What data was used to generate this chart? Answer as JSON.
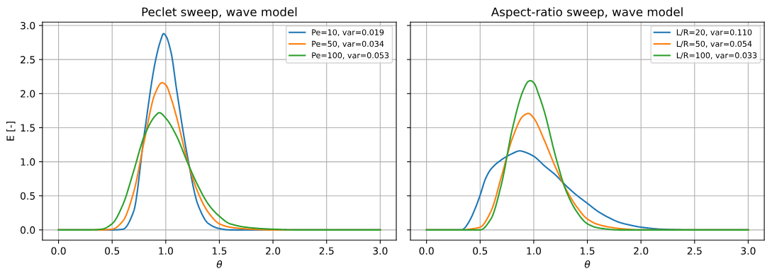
{
  "chart_data": [
    {
      "type": "line",
      "title": "Peclet sweep, wave model",
      "xlabel": "θ",
      "ylabel": "E [-]",
      "grid": true,
      "legend": "top right",
      "xlim": [
        -0.15,
        3.15
      ],
      "ylim": [
        -0.15,
        3.05
      ],
      "xticks": [
        {
          "value": 0,
          "label": "0.0"
        },
        {
          "value": 0.5,
          "label": "0.5"
        },
        {
          "value": 1,
          "label": "1.0"
        },
        {
          "value": 1.5,
          "label": "1.5"
        },
        {
          "value": 2,
          "label": "2.0"
        },
        {
          "value": 2.5,
          "label": "2.5"
        },
        {
          "value": 3,
          "label": "3.0"
        }
      ],
      "yticks": [
        {
          "value": 0,
          "label": "0.0"
        },
        {
          "value": 0.5,
          "label": "0.5"
        },
        {
          "value": 1,
          "label": "1.0"
        },
        {
          "value": 1.5,
          "label": "1.5"
        },
        {
          "value": 2,
          "label": "2.0"
        },
        {
          "value": 2.5,
          "label": "2.5"
        },
        {
          "value": 3,
          "label": "3.0"
        }
      ],
      "series": [
        {
          "name": "Pe=10, var=0.019",
          "color": "#1f77b4",
          "x": [
            0,
            0.5,
            0.6,
            0.7,
            0.8,
            0.9,
            0.95,
            0.98,
            1.0,
            1.05,
            1.1,
            1.2,
            1.3,
            1.4,
            1.5,
            1.6,
            3.0
          ],
          "values": [
            0,
            0,
            0.01,
            0.27,
            1.41,
            2.45,
            2.77,
            2.88,
            2.85,
            2.6,
            2.07,
            1.1,
            0.37,
            0.09,
            0.02,
            0,
            0
          ]
        },
        {
          "name": "Pe=50, var=0.034",
          "color": "#ff7f0e",
          "x": [
            0,
            0.4,
            0.5,
            0.6,
            0.7,
            0.8,
            0.9,
            0.965,
            1.0,
            1.05,
            1.1,
            1.2,
            1.3,
            1.4,
            1.5,
            1.6,
            1.8,
            2.0,
            3.0
          ],
          "values": [
            0,
            0,
            0.01,
            0.13,
            0.55,
            1.31,
            2.0,
            2.16,
            2.13,
            1.93,
            1.66,
            1.03,
            0.55,
            0.25,
            0.09,
            0.04,
            0.01,
            0,
            0
          ]
        },
        {
          "name": "Pe=100, var=0.053",
          "color": "#2ca02c",
          "x": [
            0,
            0.3,
            0.4,
            0.5,
            0.6,
            0.7,
            0.8,
            0.9,
            0.94,
            1.0,
            1.1,
            1.2,
            1.3,
            1.4,
            1.5,
            1.6,
            1.8,
            2.0,
            2.2,
            3.0
          ],
          "values": [
            0,
            0,
            0.01,
            0.09,
            0.37,
            0.86,
            1.38,
            1.67,
            1.72,
            1.64,
            1.38,
            1.0,
            0.65,
            0.37,
            0.2,
            0.09,
            0.03,
            0.01,
            0,
            0
          ]
        }
      ]
    },
    {
      "type": "line",
      "title": "Aspect-ratio sweep, wave model",
      "xlabel": "θ",
      "grid": true,
      "legend": "top right",
      "tick_labels": "x",
      "xlim": [
        -0.15,
        3.15
      ],
      "ylim": [
        -0.15,
        3.05
      ],
      "xticks": [
        {
          "value": 0,
          "label": "0.0"
        },
        {
          "value": 0.5,
          "label": "0.5"
        },
        {
          "value": 1,
          "label": "1.0"
        },
        {
          "value": 1.5,
          "label": "1.5"
        },
        {
          "value": 2,
          "label": "2.0"
        },
        {
          "value": 2.5,
          "label": "2.5"
        },
        {
          "value": 3,
          "label": "3.0"
        }
      ],
      "yticks": [
        {
          "value": 0,
          "label": null
        },
        {
          "value": 0.5,
          "label": null
        },
        {
          "value": 1,
          "label": null
        },
        {
          "value": 1.5,
          "label": null
        },
        {
          "value": 2,
          "label": null
        },
        {
          "value": 2.5,
          "label": null
        },
        {
          "value": 3,
          "label": null
        }
      ],
      "series": [
        {
          "name": "L/R=20, var=0.110",
          "color": "#1f77b4",
          "x": [
            0,
            0.33,
            0.35,
            0.4,
            0.45,
            0.5,
            0.55,
            0.6,
            0.7,
            0.8,
            0.87,
            0.9,
            1.0,
            1.1,
            1.2,
            1.3,
            1.4,
            1.5,
            1.6,
            1.7,
            1.8,
            1.9,
            2.0,
            2.2,
            2.5,
            3.0
          ],
          "values": [
            0,
            0,
            0.02,
            0.13,
            0.3,
            0.51,
            0.75,
            0.89,
            1.03,
            1.12,
            1.16,
            1.15,
            1.08,
            0.94,
            0.81,
            0.65,
            0.51,
            0.39,
            0.27,
            0.18,
            0.11,
            0.07,
            0.04,
            0.01,
            0,
            0
          ]
        },
        {
          "name": "L/R=50, var=0.054",
          "color": "#ff7f0e",
          "x": [
            0,
            0.35,
            0.4,
            0.5,
            0.6,
            0.7,
            0.8,
            0.9,
            0.95,
            1.0,
            1.1,
            1.2,
            1.3,
            1.4,
            1.5,
            1.6,
            1.8,
            2.0,
            3.0
          ],
          "values": [
            0,
            0,
            0.01,
            0.04,
            0.27,
            0.79,
            1.34,
            1.67,
            1.71,
            1.64,
            1.31,
            0.93,
            0.6,
            0.34,
            0.16,
            0.08,
            0.02,
            0,
            0
          ]
        },
        {
          "name": "L/R=100, var=0.033",
          "color": "#2ca02c",
          "x": [
            0,
            0.45,
            0.5,
            0.6,
            0.7,
            0.8,
            0.9,
            0.95,
            0.97,
            1.0,
            1.05,
            1.1,
            1.2,
            1.3,
            1.4,
            1.5,
            1.6,
            1.8,
            3.0
          ],
          "values": [
            0,
            0,
            0,
            0.16,
            0.68,
            1.48,
            2.04,
            2.18,
            2.19,
            2.16,
            1.97,
            1.73,
            1.1,
            0.58,
            0.27,
            0.09,
            0.03,
            0,
            0
          ]
        }
      ]
    }
  ]
}
